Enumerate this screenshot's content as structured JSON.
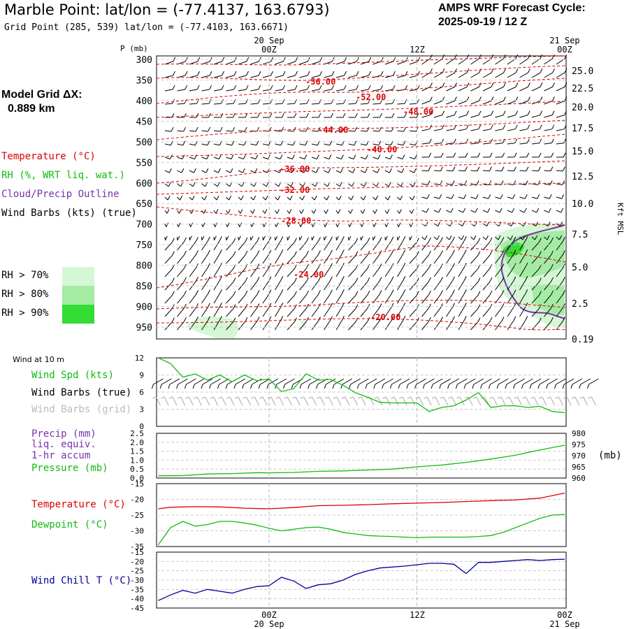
{
  "header": {
    "title": "Marble Point:  lat/lon = (-77.4137, 163.6793)",
    "subtitle": "Grid Point (285, 539) lat/lon = (-77.4103, 163.6671)",
    "cycle_line1": "AMPS WRF Forecast Cycle:",
    "cycle_line2": "2025-09-19 / 12  Z",
    "grid_line1": "Model Grid ΔX:",
    "grid_line2": "0.889 km"
  },
  "legend": {
    "temperature": "Temperature (°C)",
    "rh": "RH (%, WRT liq. wat.)",
    "cloud": "Cloud/Precip Outline",
    "barbs": "Wind Barbs (kts) (true)",
    "rh70": "RH > 70%",
    "rh80": "RH > 80%",
    "rh90": "RH > 90%",
    "colors": {
      "temperature": "#dd0000",
      "rh": "#11bb11",
      "cloud": "#7733aa",
      "rh70": "#d4f7d4",
      "rh80": "#a4eba4",
      "rh90": "#33dd33"
    }
  },
  "time_axis": {
    "top": [
      "20 Sep",
      "00Z",
      "12Z",
      "21 Sep",
      "00Z"
    ],
    "bottom": [
      "00Z",
      "20 Sep",
      "12Z",
      "00Z",
      "21 Sep"
    ]
  },
  "panel_labels": {
    "wind_at_10m": "Wind at 10 m",
    "wind_spd": "Wind Spd (kts)",
    "wind_barbs_true": "Wind Barbs (true)",
    "wind_barbs_grid": "Wind Barbs (grid)",
    "precip": "Precip (mm)",
    "liq": "liq. equiv.",
    "accum": "1-hr accum",
    "pressure": "Pressure (mb)",
    "pressure_unit": "(mb)",
    "temperature": "Temperature (°C)",
    "dewpoint": "Dewpoint (°C)",
    "windchill": "Wind Chill T (°C)"
  },
  "chart_data": [
    {
      "type": "contour",
      "name": "upper-air cross section",
      "ylabel": "P (mb)",
      "right_label": "Kft MSL",
      "pressure_ticks": [
        300,
        350,
        400,
        450,
        500,
        550,
        600,
        650,
        700,
        750,
        800,
        850,
        900,
        950
      ],
      "height_ticks": [
        "25.0",
        "22.5",
        "20.0",
        "17.5",
        "15.0",
        "12.5",
        "10.0",
        "7.5",
        "5.0",
        "2.5",
        "0.19"
      ],
      "temperature_contour_labels": [
        "-56.00",
        "-52.00",
        "-48.00",
        "-44.00",
        "-40.00",
        "-36.00",
        "-32.00",
        "-28.00",
        "-24.00",
        "-20.00"
      ]
    },
    {
      "type": "line",
      "name": "10 m wind speed",
      "y_ticks": [
        "0",
        "3",
        "6",
        "9",
        "12"
      ],
      "ylim": [
        0,
        12
      ],
      "x_hours": [
        0,
        12,
        24
      ],
      "series": [
        {
          "name": "Wind Spd (kts)",
          "color": "#11bb11",
          "x": [
            -9,
            -8,
            -7,
            -6,
            -5,
            -4,
            -3,
            -2,
            -1,
            0,
            1,
            2,
            3,
            4,
            5,
            6,
            7,
            8,
            9,
            10,
            11,
            12,
            13,
            14,
            15,
            16,
            17,
            18,
            19,
            20,
            21,
            22,
            23,
            24
          ],
          "values": [
            12,
            11,
            8.6,
            9.2,
            8.1,
            9.0,
            7.8,
            9.0,
            8.0,
            8.3,
            6.1,
            6.6,
            9.2,
            8.1,
            8.2,
            7.2,
            5.9,
            5.1,
            4.2,
            4.1,
            4.1,
            4.1,
            2.6,
            3.3,
            3.6,
            4.6,
            5.9,
            3.3,
            3.6,
            3.6,
            3.3,
            3.5,
            2.6,
            2.4
          ]
        }
      ]
    },
    {
      "type": "line",
      "name": "precip and pressure",
      "left_ticks": [
        "0.0",
        "0.5",
        "1.0",
        "1.5",
        "2.0",
        "2.5"
      ],
      "right_ticks": [
        "960",
        "965",
        "970",
        "975",
        "980"
      ],
      "ylim_left": [
        0,
        2.5
      ],
      "ylim_right": [
        960,
        980
      ],
      "series": [
        {
          "name": "Pressure (mb)",
          "color": "#11bb11",
          "x": [
            -9,
            -7,
            -5,
            -3,
            -1,
            0,
            2,
            4,
            6,
            8,
            10,
            12,
            14,
            16,
            18,
            20,
            22,
            24
          ],
          "values": [
            961.0,
            961.1,
            961.8,
            962.0,
            962.4,
            962.3,
            962.5,
            963.0,
            963.2,
            963.6,
            964.0,
            965.0,
            965.8,
            967.0,
            968.5,
            970.2,
            972.6,
            974.7
          ]
        }
      ]
    },
    {
      "type": "line",
      "name": "temperature and dewpoint",
      "y_ticks": [
        "-35",
        "-30",
        "-25",
        "-20",
        "-15"
      ],
      "ylim": [
        -35,
        -15
      ],
      "series": [
        {
          "name": "Temperature (°C)",
          "color": "#dd0000",
          "x": [
            -9,
            -8,
            -6,
            -4,
            -2,
            0,
            2,
            4,
            6,
            8,
            10,
            12,
            14,
            16,
            18,
            20,
            22,
            24
          ],
          "values": [
            -23.0,
            -22.5,
            -22.3,
            -22.4,
            -22.8,
            -23.0,
            -22.6,
            -22.0,
            -21.9,
            -21.7,
            -21.4,
            -21.2,
            -21.0,
            -20.7,
            -20.4,
            -20.2,
            -19.6,
            -18.0
          ]
        },
        {
          "name": "Dewpoint (°C)",
          "color": "#11bb11",
          "x": [
            -9,
            -8,
            -7,
            -6,
            -5,
            -4,
            -3,
            -2,
            -1,
            0,
            1,
            2,
            3,
            4,
            5,
            6,
            7,
            8,
            9,
            10,
            11,
            12,
            13,
            14,
            15,
            16,
            17,
            18,
            19,
            20,
            21,
            22,
            23,
            24
          ],
          "values": [
            -34.5,
            -29.0,
            -27.0,
            -28.5,
            -28.0,
            -27.0,
            -27.0,
            -27.5,
            -28.2,
            -29.2,
            -30.0,
            -29.5,
            -29.0,
            -28.8,
            -29.5,
            -30.5,
            -31.0,
            -31.5,
            -31.7,
            -31.8,
            -32.0,
            -32.2,
            -32.0,
            -32.0,
            -32.0,
            -32.0,
            -31.8,
            -31.5,
            -30.5,
            -29.0,
            -27.5,
            -26.0,
            -25.0,
            -24.8
          ]
        }
      ]
    },
    {
      "type": "line",
      "name": "wind chill",
      "y_ticks": [
        "-45",
        "-40",
        "-35",
        "-30",
        "-25",
        "-20",
        "-15"
      ],
      "ylim": [
        -45,
        -15
      ],
      "series": [
        {
          "name": "Wind Chill T (°C)",
          "color": "#000099",
          "x": [
            -9,
            -8,
            -7,
            -6,
            -5,
            -4,
            -3,
            -2,
            -1,
            0,
            1,
            2,
            3,
            4,
            5,
            6,
            7,
            8,
            9,
            10,
            11,
            12,
            13,
            14,
            15,
            16,
            17,
            18,
            19,
            20,
            21,
            22,
            23,
            24
          ],
          "values": [
            -41.0,
            -38.0,
            -35.5,
            -37.0,
            -35.0,
            -36.0,
            -37.0,
            -35.0,
            -33.5,
            -33.0,
            -28.5,
            -30.5,
            -34.5,
            -32.5,
            -32.0,
            -30.0,
            -27.0,
            -25.0,
            -23.5,
            -23.0,
            -22.5,
            -21.8,
            -21.0,
            -21.0,
            -21.5,
            -26.5,
            -20.5,
            -20.5,
            -20.0,
            -19.5,
            -19.0,
            -19.5,
            -19.0,
            -18.8
          ]
        }
      ]
    }
  ]
}
